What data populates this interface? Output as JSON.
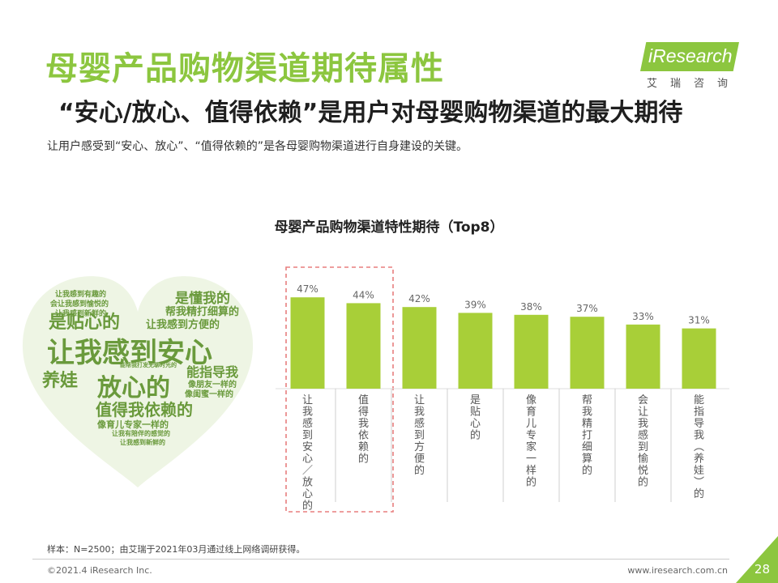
{
  "header": {
    "title": "母婴产品购物渠道期待属性",
    "subtitle": "“安心/放心、值得依赖”是用户对母婴购物渠道的最大期待",
    "description": "让用户感受到“安心、放心”、“值得依赖的”是各母婴购物渠道进行自身建设的关键。"
  },
  "logo": {
    "text": "iResearch",
    "cn": "艾瑞咨询"
  },
  "word_cloud": {
    "words": [
      "让我感到有趣的",
      "会让我感到愉悦的",
      "让我感到新鲜的",
      "是贴心的",
      "是懂我的",
      "帮我精打细算的",
      "让我感到方便的",
      "让我感到安心",
      "养娃",
      "能帮我打发无聊时光的",
      "放心的",
      "能指导我",
      "像朋友一样的",
      "像闺蜜一样的",
      "值得我依赖的",
      "像育儿专家一样的",
      "让我有陪伴的感觉的",
      "让我感到新鲜的"
    ]
  },
  "chart_data": {
    "type": "bar",
    "title": "母婴产品购物渠道特性期待（Top8）",
    "categories": [
      "让我感到安心/放心的",
      "值得我依赖的",
      "让我感到方便的",
      "是贴心的",
      "像育儿专家一样的",
      "帮我精打细算的",
      "会让我感到愉悦的",
      "能指导我（养娃）的"
    ],
    "values": [
      47,
      44,
      42,
      39,
      38,
      37,
      33,
      31
    ],
    "value_labels": [
      "47%",
      "44%",
      "42%",
      "39%",
      "38%",
      "37%",
      "33%",
      "31%"
    ],
    "highlighted": [
      0,
      1
    ],
    "ylim": [
      0,
      50
    ],
    "bar_color": "#a8cf38",
    "highlight_border_color": "#e87f7f",
    "grid": false
  },
  "footer": {
    "note": "样本：N=2500；由艾瑞于2021年03月通过线上网络调研获得。",
    "copyright": "©2021.4 iResearch Inc.",
    "website": "www.iresearch.com.cn",
    "page": "28"
  },
  "colors": {
    "accent": "#8cc63f",
    "text": "#1f1f1f"
  }
}
